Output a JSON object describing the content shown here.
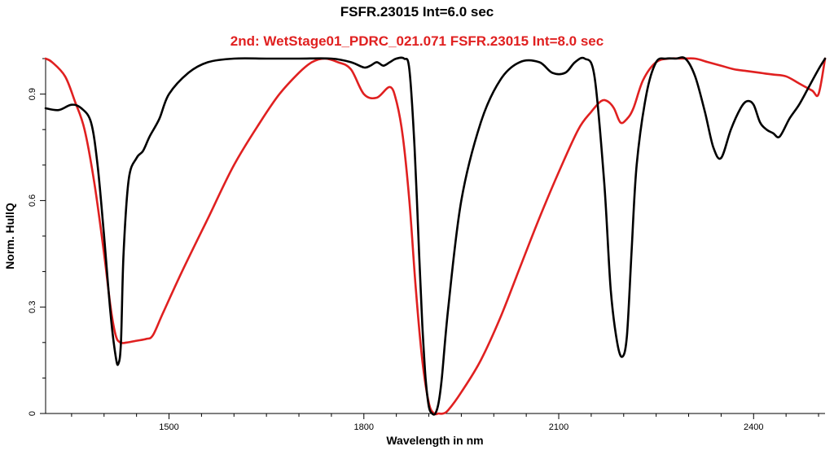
{
  "chart_data": {
    "type": "line",
    "title": "FSFR.23015 Int=6.0 sec",
    "subtitle": "2nd: WetStage01_PDRC_021.071  FSFR.23015 Int=8.0 sec",
    "xlabel": "Wavelength in nm",
    "ylabel": "Norm. HullQ",
    "xlim": [
      1310,
      2510
    ],
    "ylim": [
      0,
      1.0
    ],
    "xticks": [
      1500,
      1800,
      2100,
      2400
    ],
    "xtick_labels": [
      "1500",
      "1800",
      "2100",
      "2400"
    ],
    "yticks": [
      0,
      0.3,
      0.6,
      0.9
    ],
    "ytick_labels": [
      "0",
      "0.3",
      "0.6",
      "0.9"
    ],
    "grid": false,
    "legend": "none",
    "series": [
      {
        "color": "#000000",
        "x": [
          1310,
          1330,
          1350,
          1365,
          1380,
          1390,
          1400,
          1410,
          1418,
          1422,
          1426,
          1430,
          1438,
          1450,
          1460,
          1470,
          1485,
          1500,
          1530,
          1560,
          1600,
          1650,
          1700,
          1750,
          1780,
          1800,
          1810,
          1820,
          1830,
          1840,
          1850,
          1862,
          1870,
          1878,
          1885,
          1890,
          1895,
          1900,
          1905,
          1910,
          1915,
          1920,
          1930,
          1950,
          1980,
          2010,
          2040,
          2070,
          2090,
          2110,
          2125,
          2140,
          2155,
          2170,
          2180,
          2190,
          2198,
          2205,
          2212,
          2220,
          2235,
          2250,
          2265,
          2280,
          2295,
          2310,
          2325,
          2338,
          2350,
          2365,
          2380,
          2390,
          2400,
          2410,
          2420,
          2430,
          2440,
          2455,
          2470,
          2485,
          2500,
          2510
        ],
        "y": [
          0.86,
          0.855,
          0.87,
          0.86,
          0.82,
          0.7,
          0.5,
          0.28,
          0.16,
          0.14,
          0.2,
          0.45,
          0.66,
          0.72,
          0.74,
          0.78,
          0.83,
          0.9,
          0.96,
          0.99,
          1.0,
          1.0,
          1.0,
          1.0,
          0.99,
          0.975,
          0.98,
          0.99,
          0.98,
          0.99,
          1.0,
          1.0,
          0.97,
          0.75,
          0.45,
          0.25,
          0.1,
          0.02,
          0.0,
          0.0,
          0.03,
          0.1,
          0.3,
          0.6,
          0.82,
          0.94,
          0.99,
          0.99,
          0.96,
          0.96,
          0.99,
          1.0,
          0.95,
          0.65,
          0.35,
          0.2,
          0.16,
          0.22,
          0.45,
          0.7,
          0.9,
          0.99,
          1.0,
          1.0,
          1.0,
          0.95,
          0.85,
          0.75,
          0.72,
          0.8,
          0.86,
          0.88,
          0.87,
          0.82,
          0.8,
          0.79,
          0.78,
          0.83,
          0.87,
          0.92,
          0.97,
          1.0
        ]
      },
      {
        "color": "#e02020",
        "x": [
          1310,
          1320,
          1340,
          1355,
          1370,
          1385,
          1400,
          1410,
          1418,
          1425,
          1435,
          1450,
          1465,
          1475,
          1490,
          1520,
          1560,
          1600,
          1640,
          1670,
          1700,
          1720,
          1740,
          1760,
          1780,
          1800,
          1820,
          1840,
          1850,
          1860,
          1870,
          1880,
          1890,
          1900,
          1908,
          1915,
          1922,
          1930,
          1950,
          1980,
          2010,
          2040,
          2070,
          2100,
          2130,
          2150,
          2165,
          2175,
          2185,
          2195,
          2205,
          2215,
          2230,
          2250,
          2270,
          2290,
          2310,
          2330,
          2350,
          2370,
          2390,
          2410,
          2430,
          2450,
          2470,
          2490,
          2500,
          2510
        ],
        "y": [
          1.0,
          0.99,
          0.95,
          0.88,
          0.8,
          0.65,
          0.45,
          0.3,
          0.22,
          0.2,
          0.2,
          0.205,
          0.21,
          0.22,
          0.28,
          0.4,
          0.55,
          0.7,
          0.82,
          0.9,
          0.96,
          0.99,
          1.0,
          0.99,
          0.97,
          0.9,
          0.89,
          0.92,
          0.88,
          0.78,
          0.6,
          0.35,
          0.15,
          0.03,
          0.0,
          0.0,
          0.0,
          0.01,
          0.06,
          0.15,
          0.27,
          0.41,
          0.55,
          0.68,
          0.8,
          0.85,
          0.88,
          0.88,
          0.86,
          0.82,
          0.83,
          0.86,
          0.94,
          0.99,
          1.0,
          1.0,
          1.0,
          0.99,
          0.98,
          0.97,
          0.965,
          0.96,
          0.955,
          0.95,
          0.93,
          0.91,
          0.9,
          1.0
        ]
      }
    ]
  }
}
